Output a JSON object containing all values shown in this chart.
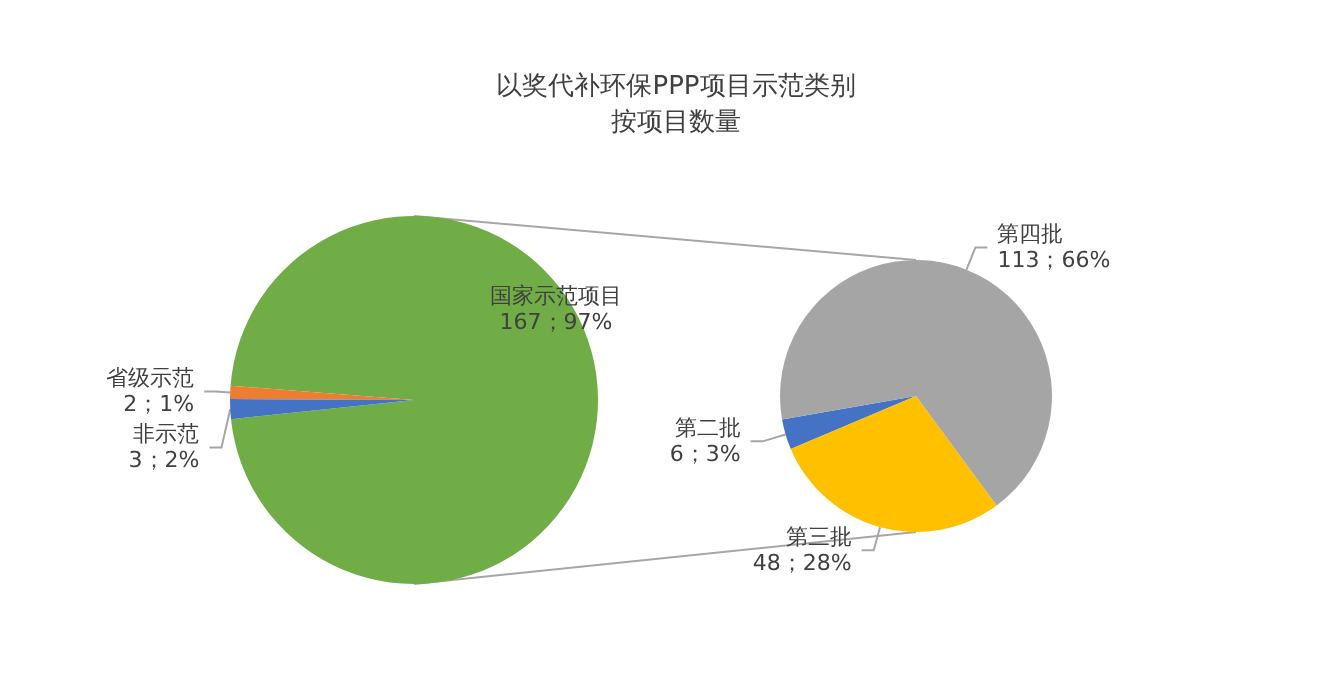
{
  "chart_data": [
    {
      "type": "pie",
      "title": "以奖代补环保PPP项目示范类别",
      "subtitle": "按项目数量",
      "categories": [
        "国家示范项目",
        "省级示范",
        "非示范"
      ],
      "values": [
        167,
        2,
        3
      ],
      "colors": [
        "#70ad47",
        "#ed7d31",
        "#4472c4"
      ],
      "value_labels": [
        "167；97%",
        "2；1%",
        "3；2%"
      ]
    },
    {
      "type": "pie",
      "categories": [
        "第二批",
        "第三批",
        "第四批"
      ],
      "values": [
        6,
        48,
        113
      ],
      "colors": [
        "#4472c4",
        "#ffc000",
        "#a5a5a5"
      ],
      "value_labels": [
        "6；3%",
        "48；28%",
        "113；66%"
      ]
    }
  ]
}
